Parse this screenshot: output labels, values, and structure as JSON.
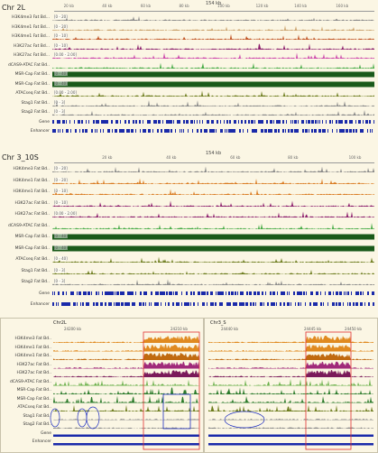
{
  "top": {
    "chrom": "Chr 2L",
    "center": "154 kb",
    "ticks": [
      "20 kb",
      "40 kb",
      "60 kb",
      "80 kb",
      "100 kb",
      "120 kb",
      "140 kb",
      "160 kb"
    ],
    "tracks": [
      {
        "label": "H3K4me3 Fat Bd...",
        "range": "[0 - 20]",
        "color": "#888888"
      },
      {
        "label": "H3K4me1 Fat Bd...",
        "range": "[0 - 20]",
        "color": "#c9a06a"
      },
      {
        "label": "H3K4me1 Fat Bd...",
        "range": "[0 - 10]",
        "color": "#c05020"
      },
      {
        "label": "H3K27ac Fat Bd...",
        "range": "[0 - 10]",
        "color": "#8a1a6a"
      },
      {
        "label": "H3K27ac Fat Bd...",
        "range": "[0.00 - 2.00]",
        "color": "#cc44aa"
      },
      {
        "label": "dCAS9-ATAC Fat Bd..",
        "range": "",
        "color": "#44aa44"
      },
      {
        "label": "MSR-Cap Fat Bd..",
        "range": "[0 - 40]",
        "color": "#1a5a1a"
      },
      {
        "label": "MSR-Cap Fat Bd..",
        "range": "[0 - 40]",
        "color": "#1a5a1a"
      },
      {
        "label": "ATACseq Fat Bd..",
        "range": "[0.00 - 2.00]",
        "color": "#6a7a1a"
      },
      {
        "label": "Stag1 Fat Bd..",
        "range": "[0 - 3]",
        "color": "#888888"
      },
      {
        "label": "Stag2 Fat Bd..",
        "range": "[0 - 3]",
        "color": "#888888"
      },
      {
        "label": "Gene",
        "range": "",
        "color": "#1a2aaa"
      },
      {
        "label": "Enhancer",
        "range": "",
        "color": "#1a2aaa"
      }
    ]
  },
  "middle": {
    "chrom": "Chr 3_10S",
    "center": "154 kb",
    "ticks": [
      "20 kb",
      "40 kb",
      "60 kb",
      "80 kb",
      "100 kb"
    ],
    "tracks": [
      {
        "label": "H3K4me3 Fat Bd..",
        "range": "[0 - 20]",
        "color": "#888888"
      },
      {
        "label": "H3K4me1 Fat Bd..",
        "range": "[0 - 20]",
        "color": "#d97a20"
      },
      {
        "label": "H3K4me1 Fat Bd..",
        "range": "[0 - 10]",
        "color": "#d97a20"
      },
      {
        "label": "H3K27ac Fat Bd..",
        "range": "[0 - 10]",
        "color": "#8a1a6a"
      },
      {
        "label": "H3K27ac Fat Bd..",
        "range": "[0.00 - 2.00]",
        "color": "#8a1a6a"
      },
      {
        "label": "dCAS9-ATAC Fat Bd..",
        "range": "",
        "color": "#44aa44"
      },
      {
        "label": "MSR-Cap Fat Bd..",
        "range": "[0 - 40]",
        "color": "#1a5a1a"
      },
      {
        "label": "MSR-Cap Fat Bd..",
        "range": "[0 - 40]",
        "color": "#1a5a1a"
      },
      {
        "label": "ATACseq Fat Bd..",
        "range": "[0 - 40]",
        "color": "#6a7a1a"
      },
      {
        "label": "Stag1 Fat Bd..",
        "range": "[0 - 3]",
        "color": "#6a7a1a"
      },
      {
        "label": "Stag2 Fat Bd..",
        "range": "[0 - 3]",
        "color": "#888888"
      },
      {
        "label": "Gene",
        "range": "",
        "color": "#1a2aaa"
      },
      {
        "label": "Enhancer",
        "range": "",
        "color": "#1a2aaa"
      }
    ]
  },
  "zoom_left": {
    "title": "Chr2L",
    "ticks": [
      "24200 kb",
      "24210 kb"
    ],
    "labels": [
      "H3K4me3 Fat Bd..",
      "H3K4me1 Fat Bd..",
      "H3K4me1 Fat Bd..",
      "H3K27ac Fat Bd..",
      "H3K27ac Fat Bd..",
      "dCAS9-ATAC Fat Bd..",
      "MSR-Cap Fat Bd..",
      "MSR-Cap Fat Bd..",
      "ATACseq Fat Bd..",
      "Stag1 Fat Bd..",
      "Stag2 Fat Bd..",
      "Gene",
      "Enhancer"
    ]
  },
  "zoom_right": {
    "title": "Chr3_S",
    "ticks": [
      "24440 kb",
      "24445 kb",
      "24450 kb"
    ]
  }
}
